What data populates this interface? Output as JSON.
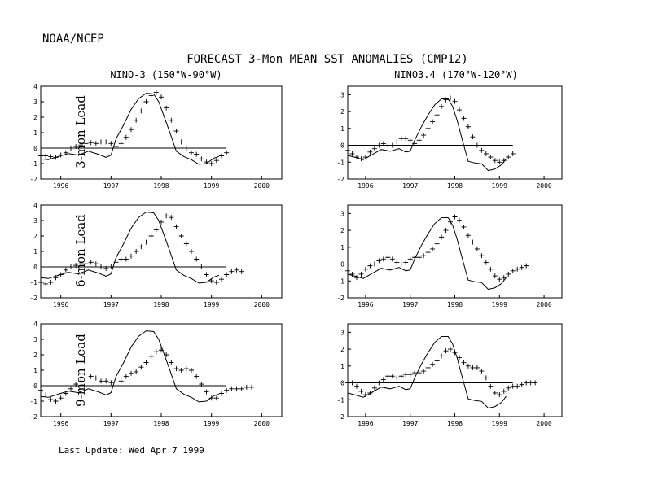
{
  "header": {
    "org": "NOAA/NCEP",
    "title": "FORECAST 3-Mon MEAN SST ANOMALIES (CMP12)",
    "last_update": "Last Update: Wed Apr 7 1999"
  },
  "rows": [
    {
      "label": "3-mon Lead"
    },
    {
      "label": "6-mon Lead"
    },
    {
      "label": "9-mon Lead"
    }
  ],
  "columns": [
    {
      "title": "NINO-3 (150°W-90°W)"
    },
    {
      "title": "NINO3.4 (170°W-120°W)"
    }
  ],
  "chart_data": [
    {
      "type": "line",
      "region": "NINO-3",
      "lead": "3-mon",
      "xlim": [
        1995.6,
        2000.4
      ],
      "ylim": [
        -2,
        4
      ],
      "xticks": [
        1996,
        1997,
        1998,
        1999,
        2000
      ],
      "xtick_labels": [
        "1996",
        "1997",
        "1998",
        "1999",
        "2000"
      ],
      "yticks": [
        -2,
        -1,
        0,
        1,
        2,
        3,
        4
      ],
      "ytick_labels": [
        "-2",
        "-1",
        "0",
        "1",
        "2",
        "3",
        "4"
      ],
      "observed": {
        "x": [
          1995.6,
          1995.75,
          1995.95,
          1996.15,
          1996.35,
          1996.55,
          1996.75,
          1996.9,
          1997.0,
          1997.1,
          1997.25,
          1997.4,
          1997.55,
          1997.7,
          1997.85,
          1997.95,
          1998.05,
          1998.15,
          1998.3,
          1998.45,
          1998.6,
          1998.75,
          1998.9,
          1999.05,
          1999.15
        ],
        "y": [
          -0.7,
          -0.75,
          -0.55,
          -0.35,
          -0.45,
          -0.2,
          -0.4,
          -0.6,
          -0.45,
          0.6,
          1.5,
          2.5,
          3.2,
          3.55,
          3.5,
          3.0,
          2.1,
          1.2,
          -0.2,
          -0.55,
          -0.75,
          -1.05,
          -1.0,
          -0.65,
          -0.55
        ]
      },
      "forecast": {
        "x": [
          1995.6,
          1995.7,
          1995.8,
          1995.9,
          1996.0,
          1996.1,
          1996.2,
          1996.3,
          1996.4,
          1996.5,
          1996.6,
          1996.7,
          1996.8,
          1996.9,
          1997.0,
          1997.1,
          1997.2,
          1997.3,
          1997.4,
          1997.5,
          1997.6,
          1997.7,
          1997.8,
          1997.9,
          1998.0,
          1998.1,
          1998.2,
          1998.3,
          1998.4,
          1998.5,
          1998.6,
          1998.7,
          1998.8,
          1998.9,
          1999.0,
          1999.1,
          1999.2,
          1999.3
        ],
        "y": [
          -0.5,
          -0.5,
          -0.55,
          -0.6,
          -0.45,
          -0.3,
          0.0,
          0.1,
          0.2,
          0.3,
          0.35,
          0.3,
          0.4,
          0.4,
          0.3,
          0.1,
          0.3,
          0.7,
          1.2,
          1.8,
          2.4,
          3.0,
          3.4,
          3.6,
          3.3,
          2.6,
          1.8,
          1.1,
          0.4,
          0.0,
          -0.3,
          -0.4,
          -0.7,
          -0.9,
          -1.0,
          -0.8,
          -0.5,
          -0.3
        ]
      }
    },
    {
      "type": "line",
      "region": "NINO3.4",
      "lead": "3-mon",
      "xlim": [
        1995.6,
        2000.4
      ],
      "ylim": [
        -2,
        3.5
      ],
      "xticks": [
        1996,
        1997,
        1998,
        1999,
        2000
      ],
      "xtick_labels": [
        "1996",
        "1997",
        "1998",
        "1999",
        "2000"
      ],
      "yticks": [
        -2,
        -1,
        0,
        1,
        2,
        3
      ],
      "ytick_labels": [
        "-2",
        "-1",
        "0",
        "1",
        "2",
        "3"
      ],
      "observed": {
        "x": [
          1995.6,
          1995.75,
          1995.95,
          1996.15,
          1996.35,
          1996.55,
          1996.75,
          1996.9,
          1997.0,
          1997.1,
          1997.25,
          1997.4,
          1997.55,
          1997.7,
          1997.85,
          1997.95,
          1998.05,
          1998.15,
          1998.3,
          1998.45,
          1998.6,
          1998.75,
          1998.9,
          1999.05,
          1999.15
        ],
        "y": [
          -0.6,
          -0.7,
          -0.85,
          -0.55,
          -0.25,
          -0.35,
          -0.2,
          -0.4,
          -0.35,
          0.3,
          1.1,
          1.8,
          2.4,
          2.75,
          2.75,
          2.3,
          1.5,
          0.5,
          -0.95,
          -1.05,
          -1.1,
          -1.5,
          -1.4,
          -1.15,
          -0.8
        ]
      },
      "forecast": {
        "x": [
          1995.6,
          1995.7,
          1995.8,
          1995.9,
          1996.0,
          1996.1,
          1996.2,
          1996.3,
          1996.4,
          1996.5,
          1996.6,
          1996.7,
          1996.8,
          1996.9,
          1997.0,
          1997.1,
          1997.2,
          1997.3,
          1997.4,
          1997.5,
          1997.6,
          1997.7,
          1997.8,
          1997.9,
          1998.0,
          1998.1,
          1998.2,
          1998.3,
          1998.4,
          1998.5,
          1998.6,
          1998.7,
          1998.8,
          1998.9,
          1999.0,
          1999.1,
          1999.2,
          1999.3
        ],
        "y": [
          -0.3,
          -0.5,
          -0.7,
          -0.8,
          -0.7,
          -0.4,
          -0.2,
          0.0,
          0.1,
          0.0,
          0.0,
          0.2,
          0.4,
          0.4,
          0.3,
          0.1,
          0.3,
          0.6,
          1.0,
          1.4,
          1.8,
          2.3,
          2.7,
          2.8,
          2.6,
          2.1,
          1.6,
          1.1,
          0.5,
          0.0,
          -0.3,
          -0.5,
          -0.7,
          -0.9,
          -1.0,
          -0.9,
          -0.7,
          -0.5
        ]
      }
    },
    {
      "type": "line",
      "region": "NINO-3",
      "lead": "6-mon",
      "xlim": [
        1995.6,
        2000.4
      ],
      "ylim": [
        -2,
        4
      ],
      "xticks": [
        1996,
        1997,
        1998,
        1999,
        2000
      ],
      "xtick_labels": [
        "1996",
        "1997",
        "1998",
        "1999",
        "2000"
      ],
      "yticks": [
        -2,
        -1,
        0,
        1,
        2,
        3,
        4
      ],
      "ytick_labels": [
        "-2",
        "-1",
        "0",
        "1",
        "2",
        "3",
        "4"
      ],
      "observed": {
        "x": [
          1995.6,
          1995.75,
          1995.95,
          1996.15,
          1996.35,
          1996.55,
          1996.75,
          1996.9,
          1997.0,
          1997.1,
          1997.25,
          1997.4,
          1997.55,
          1997.7,
          1997.85,
          1997.95,
          1998.05,
          1998.15,
          1998.3,
          1998.45,
          1998.6,
          1998.75,
          1998.9,
          1999.05,
          1999.15
        ],
        "y": [
          -0.7,
          -0.75,
          -0.55,
          -0.35,
          -0.45,
          -0.2,
          -0.4,
          -0.6,
          -0.45,
          0.6,
          1.5,
          2.5,
          3.2,
          3.55,
          3.5,
          3.0,
          2.1,
          1.2,
          -0.2,
          -0.55,
          -0.75,
          -1.05,
          -1.0,
          -0.65,
          -0.55
        ]
      },
      "forecast": {
        "x": [
          1995.6,
          1995.7,
          1995.8,
          1995.9,
          1996.0,
          1996.1,
          1996.2,
          1996.3,
          1996.4,
          1996.5,
          1996.6,
          1996.7,
          1996.8,
          1996.9,
          1997.0,
          1997.1,
          1997.2,
          1997.3,
          1997.4,
          1997.5,
          1997.6,
          1997.7,
          1997.8,
          1997.9,
          1998.0,
          1998.1,
          1998.2,
          1998.3,
          1998.4,
          1998.5,
          1998.6,
          1998.7,
          1998.8,
          1998.9,
          1999.0,
          1999.1,
          1999.2,
          1999.3,
          1999.4,
          1999.5,
          1999.6
        ],
        "y": [
          -1.0,
          -1.1,
          -1.0,
          -0.7,
          -0.5,
          -0.2,
          0.0,
          0.1,
          0.2,
          0.2,
          0.3,
          0.2,
          0.0,
          -0.1,
          0.0,
          0.3,
          0.5,
          0.5,
          0.7,
          1.0,
          1.3,
          1.6,
          2.0,
          2.4,
          2.9,
          3.3,
          3.2,
          2.6,
          2.0,
          1.5,
          1.0,
          0.5,
          0.0,
          -0.5,
          -0.9,
          -1.0,
          -0.8,
          -0.5,
          -0.3,
          -0.2,
          -0.3
        ]
      }
    },
    {
      "type": "line",
      "region": "NINO3.4",
      "lead": "6-mon",
      "xlim": [
        1995.6,
        2000.4
      ],
      "ylim": [
        -2,
        3.5
      ],
      "xticks": [
        1996,
        1997,
        1998,
        1999,
        2000
      ],
      "xtick_labels": [
        "1996",
        "1997",
        "1998",
        "1999",
        "2000"
      ],
      "yticks": [
        -2,
        -1,
        0,
        1,
        2,
        3
      ],
      "ytick_labels": [
        "-2",
        "-1",
        "0",
        "1",
        "2",
        "3"
      ],
      "observed": {
        "x": [
          1995.6,
          1995.75,
          1995.95,
          1996.15,
          1996.35,
          1996.55,
          1996.75,
          1996.9,
          1997.0,
          1997.1,
          1997.25,
          1997.4,
          1997.55,
          1997.7,
          1997.85,
          1997.95,
          1998.05,
          1998.15,
          1998.3,
          1998.45,
          1998.6,
          1998.75,
          1998.9,
          1999.05,
          1999.15
        ],
        "y": [
          -0.6,
          -0.7,
          -0.85,
          -0.55,
          -0.25,
          -0.35,
          -0.2,
          -0.4,
          -0.35,
          0.3,
          1.1,
          1.8,
          2.4,
          2.75,
          2.75,
          2.3,
          1.5,
          0.5,
          -0.95,
          -1.05,
          -1.1,
          -1.5,
          -1.4,
          -1.15,
          -0.8
        ]
      },
      "forecast": {
        "x": [
          1995.6,
          1995.7,
          1995.8,
          1995.9,
          1996.0,
          1996.1,
          1996.2,
          1996.3,
          1996.4,
          1996.5,
          1996.6,
          1996.7,
          1996.8,
          1996.9,
          1997.0,
          1997.1,
          1997.2,
          1997.3,
          1997.4,
          1997.5,
          1997.6,
          1997.7,
          1997.8,
          1997.9,
          1998.0,
          1998.1,
          1998.2,
          1998.3,
          1998.4,
          1998.5,
          1998.6,
          1998.7,
          1998.8,
          1998.9,
          1999.0,
          1999.1,
          1999.2,
          1999.3,
          1999.4,
          1999.5,
          1999.6
        ],
        "y": [
          -0.4,
          -0.6,
          -0.8,
          -0.6,
          -0.3,
          -0.1,
          0.0,
          0.2,
          0.3,
          0.4,
          0.3,
          0.1,
          0.0,
          0.1,
          0.3,
          0.4,
          0.4,
          0.5,
          0.7,
          0.9,
          1.2,
          1.6,
          2.0,
          2.5,
          2.8,
          2.6,
          2.2,
          1.7,
          1.3,
          0.9,
          0.5,
          0.1,
          -0.3,
          -0.7,
          -0.9,
          -0.8,
          -0.6,
          -0.4,
          -0.3,
          -0.2,
          -0.1
        ]
      }
    },
    {
      "type": "line",
      "region": "NINO-3",
      "lead": "9-mon",
      "xlim": [
        1995.6,
        2000.4
      ],
      "ylim": [
        -2,
        4
      ],
      "xticks": [
        1996,
        1997,
        1998,
        1999,
        2000
      ],
      "xtick_labels": [
        "1996",
        "1997",
        "1998",
        "1999",
        "2000"
      ],
      "yticks": [
        -2,
        -1,
        0,
        1,
        2,
        3,
        4
      ],
      "ytick_labels": [
        "-2",
        "-1",
        "0",
        "1",
        "2",
        "3",
        "4"
      ],
      "observed": {
        "x": [
          1995.6,
          1995.75,
          1995.95,
          1996.15,
          1996.35,
          1996.55,
          1996.75,
          1996.9,
          1997.0,
          1997.1,
          1997.25,
          1997.4,
          1997.55,
          1997.7,
          1997.85,
          1997.95,
          1998.05,
          1998.15,
          1998.3,
          1998.45,
          1998.6,
          1998.75,
          1998.9,
          1999.05,
          1999.15
        ],
        "y": [
          -0.7,
          -0.75,
          -0.55,
          -0.35,
          -0.45,
          -0.2,
          -0.4,
          -0.6,
          -0.45,
          0.6,
          1.5,
          2.5,
          3.2,
          3.55,
          3.5,
          3.0,
          2.1,
          1.2,
          -0.2,
          -0.55,
          -0.75,
          -1.05,
          -1.0,
          -0.65,
          -0.55
        ]
      },
      "forecast": {
        "x": [
          1995.6,
          1995.7,
          1995.8,
          1995.9,
          1996.0,
          1996.1,
          1996.2,
          1996.3,
          1996.4,
          1996.5,
          1996.6,
          1996.7,
          1996.8,
          1996.9,
          1997.0,
          1997.1,
          1997.2,
          1997.3,
          1997.4,
          1997.5,
          1997.6,
          1997.7,
          1997.8,
          1997.9,
          1998.0,
          1998.1,
          1998.2,
          1998.3,
          1998.4,
          1998.5,
          1998.6,
          1998.7,
          1998.8,
          1998.9,
          1999.0,
          1999.1,
          1999.2,
          1999.3,
          1999.4,
          1999.5,
          1999.6,
          1999.7,
          1999.8
        ],
        "y": [
          -0.3,
          -0.6,
          -0.9,
          -1.0,
          -0.8,
          -0.5,
          -0.2,
          0.1,
          0.3,
          0.5,
          0.6,
          0.5,
          0.3,
          0.3,
          0.2,
          0.0,
          0.3,
          0.6,
          0.8,
          0.9,
          1.2,
          1.5,
          1.9,
          2.2,
          2.3,
          2.0,
          1.5,
          1.1,
          1.0,
          1.1,
          1.0,
          0.6,
          0.1,
          -0.4,
          -0.8,
          -0.8,
          -0.5,
          -0.3,
          -0.2,
          -0.2,
          -0.2,
          -0.1,
          -0.1
        ]
      }
    },
    {
      "type": "line",
      "region": "NINO3.4",
      "lead": "9-mon",
      "xlim": [
        1995.6,
        2000.4
      ],
      "ylim": [
        -2,
        3.5
      ],
      "xticks": [
        1996,
        1997,
        1998,
        1999,
        2000
      ],
      "xtick_labels": [
        "1996",
        "1997",
        "1998",
        "1999",
        "2000"
      ],
      "yticks": [
        -2,
        -1,
        0,
        1,
        2,
        3
      ],
      "ytick_labels": [
        "-2",
        "-1",
        "0",
        "1",
        "2",
        "3"
      ],
      "observed": {
        "x": [
          1995.6,
          1995.75,
          1995.95,
          1996.15,
          1996.35,
          1996.55,
          1996.75,
          1996.9,
          1997.0,
          1997.1,
          1997.25,
          1997.4,
          1997.55,
          1997.7,
          1997.85,
          1997.95,
          1998.05,
          1998.15,
          1998.3,
          1998.45,
          1998.6,
          1998.75,
          1998.9,
          1999.05,
          1999.15
        ],
        "y": [
          -0.6,
          -0.7,
          -0.85,
          -0.55,
          -0.25,
          -0.35,
          -0.2,
          -0.4,
          -0.35,
          0.3,
          1.1,
          1.8,
          2.4,
          2.75,
          2.75,
          2.3,
          1.5,
          0.5,
          -0.95,
          -1.05,
          -1.1,
          -1.5,
          -1.4,
          -1.15,
          -0.8
        ]
      },
      "forecast": {
        "x": [
          1995.6,
          1995.7,
          1995.8,
          1995.9,
          1996.0,
          1996.1,
          1996.2,
          1996.3,
          1996.4,
          1996.5,
          1996.6,
          1996.7,
          1996.8,
          1996.9,
          1997.0,
          1997.1,
          1997.2,
          1997.3,
          1997.4,
          1997.5,
          1997.6,
          1997.7,
          1997.8,
          1997.9,
          1998.0,
          1998.1,
          1998.2,
          1998.3,
          1998.4,
          1998.5,
          1998.6,
          1998.7,
          1998.8,
          1998.9,
          1999.0,
          1999.1,
          1999.2,
          1999.3,
          1999.4,
          1999.5,
          1999.6,
          1999.7,
          1999.8
        ],
        "y": [
          0.0,
          0.0,
          -0.2,
          -0.5,
          -0.7,
          -0.6,
          -0.3,
          0.0,
          0.2,
          0.4,
          0.4,
          0.3,
          0.4,
          0.5,
          0.5,
          0.6,
          0.6,
          0.7,
          0.9,
          1.1,
          1.3,
          1.6,
          1.9,
          2.0,
          1.8,
          1.5,
          1.2,
          1.0,
          0.9,
          0.9,
          0.7,
          0.3,
          -0.2,
          -0.6,
          -0.7,
          -0.5,
          -0.3,
          -0.2,
          -0.2,
          -0.1,
          0.0,
          0.0,
          0.0
        ]
      }
    }
  ]
}
